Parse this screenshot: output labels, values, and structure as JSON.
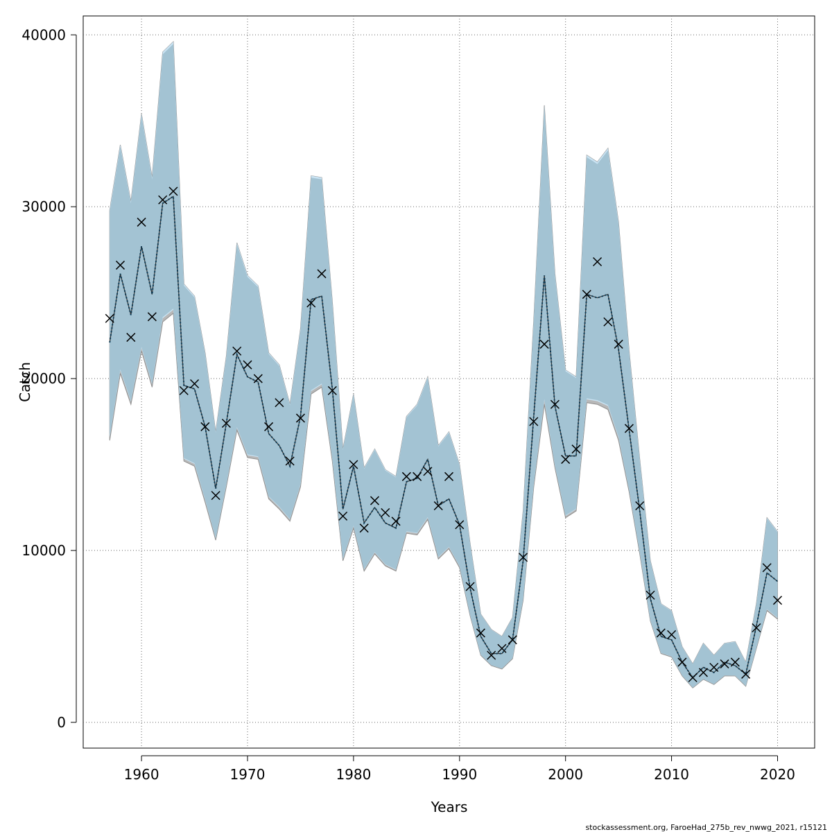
{
  "chart_data": {
    "type": "line",
    "xlabel": "Years",
    "ylabel": "Catch",
    "xlim": [
      1954.5,
      2023.5
    ],
    "ylim": [
      -1500,
      41100
    ],
    "x_ticks": [
      1960,
      1970,
      1980,
      1990,
      2000,
      2010,
      2020
    ],
    "y_ticks": [
      0,
      10000,
      20000,
      30000,
      40000
    ],
    "grid": true,
    "credit": "stockassessment.org, FaroeHad_275b_rev_nwwg_2021, r15121",
    "colors": {
      "band_blue": "#a3c3d3",
      "band_light_blue": "#c9e3f3",
      "band_grey": "#b8b8b8",
      "band_edge": "#8f8f8f",
      "estimate_line": "#0b3a55",
      "observation_marker": "#000000",
      "grid": "#666666"
    },
    "years": [
      1957,
      1958,
      1959,
      1960,
      1961,
      1962,
      1963,
      1964,
      1965,
      1966,
      1967,
      1968,
      1969,
      1970,
      1971,
      1972,
      1973,
      1974,
      1975,
      1976,
      1977,
      1978,
      1979,
      1980,
      1981,
      1982,
      1983,
      1984,
      1985,
      1986,
      1987,
      1988,
      1989,
      1990,
      1991,
      1992,
      1993,
      1994,
      1995,
      1996,
      1997,
      1998,
      1999,
      2000,
      2001,
      2002,
      2003,
      2004,
      2005,
      2006,
      2007,
      2008,
      2009,
      2010,
      2011,
      2012,
      2013,
      2014,
      2015,
      2016,
      2017,
      2018,
      2019,
      2020
    ],
    "series": [
      {
        "kind": "estimate",
        "values": [
          22100,
          26100,
          23700,
          27700,
          24900,
          30200,
          30600,
          19600,
          19400,
          17200,
          13600,
          17400,
          21400,
          20100,
          19800,
          16800,
          16100,
          14900,
          17800,
          24600,
          24800,
          19400,
          12400,
          14900,
          11600,
          12500,
          11600,
          11300,
          14000,
          14200,
          15300,
          12600,
          13000,
          11500,
          7800,
          5000,
          4000,
          4000,
          4800,
          9400,
          17800,
          26000,
          18400,
          15500,
          15500,
          24900,
          24700,
          24900,
          21700,
          17000,
          12300,
          7200,
          5000,
          4800,
          3500,
          2600,
          3200,
          2900,
          3500,
          3300,
          2800,
          5600,
          8700,
          8200
        ]
      },
      {
        "kind": "upper",
        "values": [
          29800,
          33600,
          30300,
          35400,
          31700,
          39000,
          39600,
          25500,
          24800,
          21500,
          16900,
          21300,
          27900,
          26000,
          25400,
          21500,
          20800,
          18500,
          22900,
          31800,
          31700,
          24500,
          15900,
          19100,
          14800,
          15900,
          14700,
          14300,
          17800,
          18500,
          20100,
          16100,
          16900,
          15000,
          10400,
          6300,
          5400,
          5000,
          6100,
          12300,
          23400,
          35900,
          26100,
          20500,
          20100,
          33000,
          32600,
          33400,
          29100,
          21600,
          15300,
          9400,
          6900,
          6500,
          4400,
          3400,
          4600,
          3900,
          4600,
          4700,
          3500,
          6900,
          11900,
          11100
        ]
      },
      {
        "kind": "lower",
        "values": [
          16400,
          20300,
          18500,
          21600,
          19500,
          23300,
          23800,
          15200,
          14900,
          12800,
          10600,
          13700,
          17000,
          15400,
          15300,
          13000,
          12400,
          11700,
          13700,
          19100,
          19500,
          15200,
          9400,
          11300,
          8800,
          9800,
          9100,
          8800,
          11000,
          10900,
          11800,
          9500,
          10100,
          9000,
          6200,
          3900,
          3300,
          3100,
          3700,
          7100,
          13700,
          18500,
          14800,
          11900,
          12300,
          18600,
          18500,
          18200,
          16400,
          13400,
          9800,
          5900,
          4000,
          3800,
          2700,
          2000,
          2500,
          2200,
          2700,
          2700,
          2100,
          4300,
          6500,
          6000
        ]
      },
      {
        "kind": "observed",
        "values": [
          23500,
          26600,
          22400,
          29100,
          23600,
          30400,
          30900,
          19300,
          19700,
          17200,
          13200,
          17400,
          21600,
          20800,
          20000,
          17200,
          18600,
          15200,
          17700,
          24400,
          26100,
          19300,
          12000,
          15000,
          11300,
          12900,
          12200,
          11700,
          14300,
          14300,
          14600,
          12600,
          14300,
          11500,
          7900,
          5200,
          3900,
          4300,
          4800,
          9600,
          17500,
          22000,
          18500,
          15300,
          15900,
          24900,
          26800,
          23300,
          22000,
          17100,
          12600,
          7400,
          5200,
          5100,
          3500,
          2600,
          2900,
          3200,
          3400,
          3500,
          2800,
          5500,
          9000,
          7100
        ]
      }
    ]
  }
}
